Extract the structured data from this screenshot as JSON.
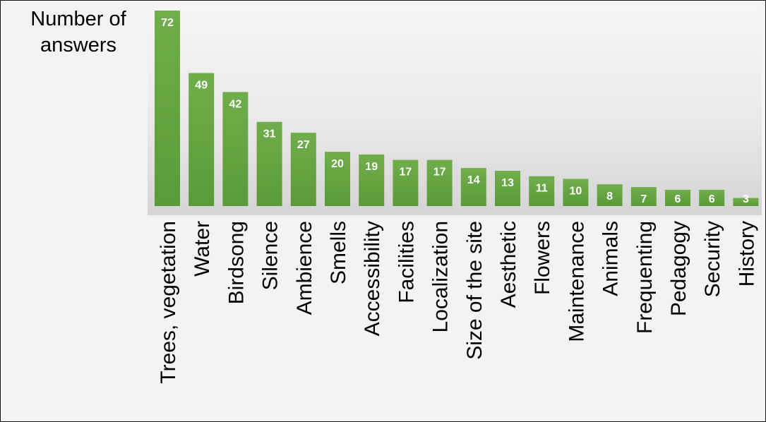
{
  "chart_data": {
    "type": "bar",
    "title": "",
    "ylabel": "Number of answers",
    "xlabel": "",
    "ylim": [
      0,
      72
    ],
    "grid": false,
    "legend": "none",
    "bar_color": "#6aac45",
    "categories": [
      "Trees, vegetation",
      "Water",
      "Birdsong",
      "Silence",
      "Ambience",
      "Smells",
      "Accessibility",
      "Facilities",
      "Localization",
      "Size of the site",
      "Aesthetic",
      "Flowers",
      "Maintenance",
      "Animals",
      "Frequenting",
      "Pedagogy",
      "Security",
      "History"
    ],
    "values": [
      72,
      49,
      42,
      31,
      27,
      20,
      19,
      17,
      17,
      14,
      13,
      11,
      10,
      8,
      7,
      6,
      6,
      3
    ]
  }
}
